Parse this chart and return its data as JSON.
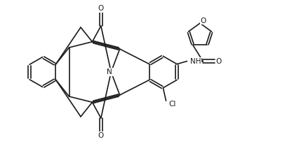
{
  "bg_color": "#ffffff",
  "line_color": "#1a1a1a",
  "line_width": 1.2,
  "figsize": [
    4.36,
    2.06
  ],
  "dpi": 100,
  "xlim": [
    0,
    10
  ],
  "ylim": [
    0,
    5
  ]
}
